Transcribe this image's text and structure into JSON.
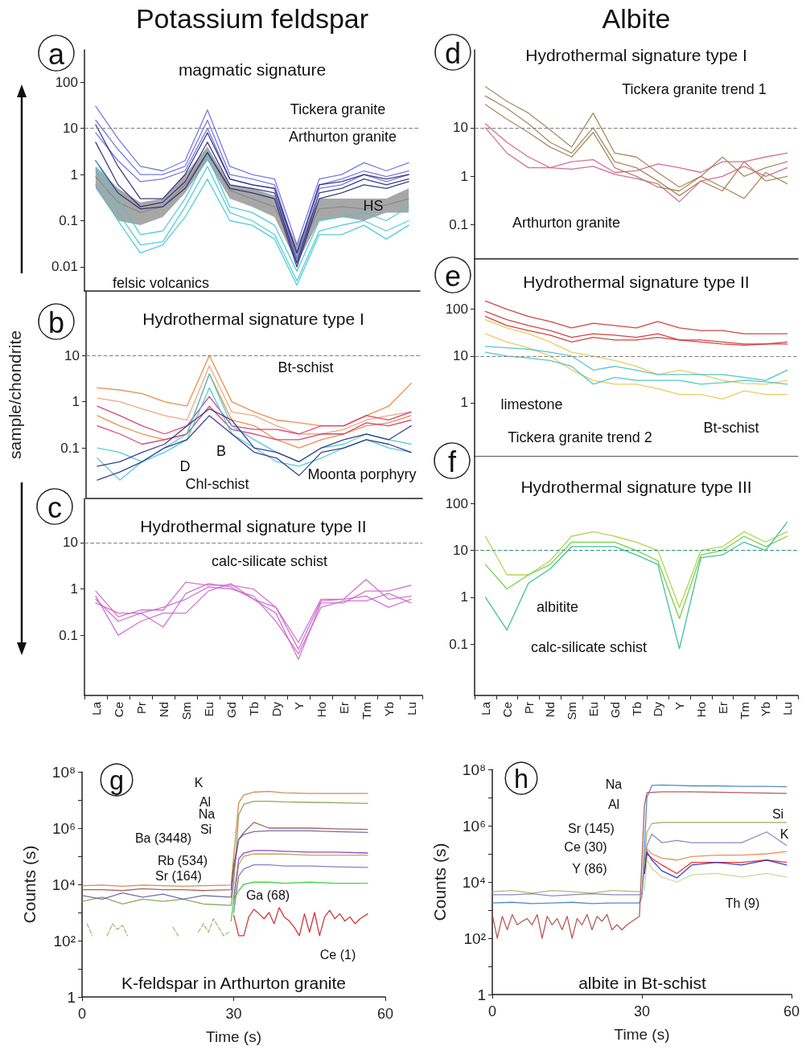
{
  "chart_data": [
    {
      "type": "line",
      "title": "Potassium feldspar",
      "subtitle": "magmatic signature",
      "categories": [
        null,
        null,
        null,
        null,
        null,
        null,
        null,
        null,
        null,
        null,
        null,
        null,
        null,
        null,
        null
      ],
      "log": true,
      "ylim": [
        0.003,
        500
      ],
      "yticks": [
        0.01,
        0.1,
        1,
        10,
        100
      ],
      "tick_labels": "y",
      "series": [
        {
          "color": "#8a8a8a",
          "values": [
            0.9,
            0.25,
            0.15,
            0.2,
            0.6,
            3,
            0.45,
            0.3,
            0.2,
            0.02,
            0.18,
            0.2,
            0.18,
            0.22,
            0.3
          ],
          "lower": [
            0.5,
            0.1,
            0.08,
            0.12,
            0.4,
            2,
            0.3,
            0.2,
            0.12,
            0.012,
            0.1,
            0.12,
            0.1,
            0.15,
            0.15
          ],
          "upper": [
            1.5,
            0.5,
            0.25,
            0.3,
            1,
            4,
            0.6,
            0.5,
            0.35,
            0.03,
            0.3,
            0.3,
            0.3,
            0.3,
            0.5
          ]
        },
        {
          "color": "#6a6ae0",
          "values": [
            30,
            6,
            1.5,
            1.2,
            2,
            25,
            1.5,
            1,
            0.8,
            0.03,
            0.8,
            1,
            1.8,
            1.2,
            1.8
          ]
        },
        {
          "color": "#6a6ae0",
          "values": [
            15,
            3.5,
            1,
            1,
            1.5,
            15,
            1,
            0.8,
            0.6,
            0.02,
            0.6,
            0.8,
            1.2,
            0.9,
            1.2
          ]
        },
        {
          "color": "#6a6ae0",
          "values": [
            8,
            2,
            0.7,
            0.8,
            1.2,
            10,
            0.8,
            0.6,
            0.5,
            0.015,
            0.5,
            0.6,
            1,
            0.7,
            1
          ]
        },
        {
          "color": "#2a2a78",
          "values": [
            12,
            1.5,
            0.3,
            0.3,
            1,
            8,
            0.8,
            0.6,
            0.5,
            0.02,
            0.6,
            0.7,
            1,
            0.8,
            1
          ]
        },
        {
          "color": "#2a2a78",
          "values": [
            5,
            0.6,
            0.2,
            0.25,
            0.7,
            5,
            0.6,
            0.5,
            0.4,
            0.012,
            0.4,
            0.5,
            0.8,
            0.6,
            0.8
          ]
        },
        {
          "color": "#2a2a78",
          "values": [
            2,
            0.4,
            0.18,
            0.2,
            0.5,
            3,
            0.5,
            0.4,
            0.3,
            0.01,
            0.3,
            0.4,
            0.6,
            0.5,
            0.7
          ]
        },
        {
          "color": "#40c8d8",
          "values": [
            2,
            0.3,
            0.05,
            0.06,
            0.3,
            2.5,
            0.2,
            0.15,
            0.08,
            0.008,
            0.1,
            0.12,
            0.15,
            0.1,
            0.2
          ]
        },
        {
          "color": "#40c8d8",
          "values": [
            1.3,
            0.15,
            0.03,
            0.035,
            0.2,
            1.5,
            0.15,
            0.1,
            0.05,
            0.005,
            0.06,
            0.08,
            0.1,
            0.06,
            0.1
          ]
        },
        {
          "color": "#40c8d8",
          "values": [
            0.6,
            0.1,
            0.02,
            0.03,
            0.12,
            0.8,
            0.1,
            0.08,
            0.04,
            0.004,
            0.05,
            0.05,
            0.08,
            0.04,
            0.08
          ]
        }
      ],
      "ref_lines": [
        {
          "axis": "y",
          "value": 10,
          "line_style": "dashed",
          "color": "#808080"
        }
      ],
      "annotations": [
        "a",
        "Tickera granite",
        "Arthurton granite",
        "felsic volcanics",
        "HS"
      ]
    },
    {
      "type": "line",
      "title": "Hydrothermal signature type I",
      "ylabel": "sample/chondrite",
      "categories": [
        null,
        null,
        null,
        null,
        null,
        null,
        null,
        null,
        null,
        null,
        null,
        null,
        null,
        null,
        null
      ],
      "log": true,
      "ylim": [
        0.008,
        250
      ],
      "yticks": [
        0.1,
        1,
        10
      ],
      "tick_labels": "y",
      "series": [
        {
          "color": "#e8843a",
          "values": [
            2,
            1.8,
            1.5,
            1,
            0.8,
            10,
            1,
            0.6,
            0.4,
            0.35,
            0.3,
            0.3,
            0.5,
            0.8,
            2.5
          ]
        },
        {
          "color": "#eca070",
          "values": [
            1.2,
            1,
            0.7,
            0.5,
            0.4,
            6,
            0.6,
            0.5,
            0.3,
            0.2,
            0.2,
            0.25,
            0.4,
            0.5,
            0.6
          ]
        },
        {
          "color": "#e8843a",
          "values": [
            0.5,
            0.3,
            0.2,
            0.15,
            0.2,
            4,
            0.4,
            0.3,
            0.15,
            0.1,
            0.15,
            0.2,
            0.3,
            0.35,
            0.5
          ]
        },
        {
          "color": "#d8306a",
          "values": [
            0.8,
            0.5,
            0.3,
            0.2,
            0.3,
            1.3,
            0.3,
            0.25,
            0.25,
            0.2,
            0.3,
            0.3,
            0.5,
            0.4,
            0.6
          ]
        },
        {
          "color": "#d8306a",
          "values": [
            0.3,
            0.2,
            0.12,
            0.15,
            0.2,
            0.8,
            0.25,
            0.2,
            0.15,
            0.15,
            0.2,
            0.2,
            0.35,
            0.3,
            0.4
          ]
        },
        {
          "color": "#40c8d8",
          "values": [
            0.1,
            0.08,
            0.05,
            0.1,
            0.2,
            4,
            0.3,
            0.15,
            0.08,
            0.05,
            0.1,
            0.12,
            0.2,
            0.15,
            0.12
          ]
        },
        {
          "color": "#40c8d8",
          "values": [
            0.06,
            0.02,
            0.05,
            0.08,
            0.15,
            2,
            0.2,
            0.1,
            0.05,
            0.04,
            0.06,
            0.1,
            0.15,
            0.1,
            0.08
          ]
        },
        {
          "color": "#2a2a80",
          "values": [
            0.04,
            0.05,
            0.08,
            0.12,
            0.3,
            0.7,
            0.4,
            0.1,
            0.08,
            0.05,
            0.1,
            0.15,
            0.2,
            0.15,
            0.3
          ]
        },
        {
          "color": "#2a2a80",
          "values": [
            0.02,
            0.03,
            0.05,
            0.1,
            0.15,
            0.5,
            0.2,
            0.08,
            0.06,
            0.025,
            0.08,
            0.1,
            0.15,
            0.12,
            0.08
          ]
        }
      ],
      "ref_lines": [
        {
          "axis": "y",
          "value": 10,
          "line_style": "dashed",
          "color": "#808080"
        }
      ],
      "annotations": [
        "b",
        "Bt-schist",
        "Chl-schist",
        "D",
        "B",
        "Moonta porphyry"
      ]
    },
    {
      "type": "line",
      "title": "Hydrothermal signature type II",
      "categories": [
        "La",
        "Ce",
        "Pr",
        "Nd",
        "Sm",
        "Eu",
        "Gd",
        "Tb",
        "Dy",
        "Y",
        "Ho",
        "Er",
        "Tm",
        "Yb",
        "Lu"
      ],
      "log": true,
      "ylim": [
        0.005,
        90
      ],
      "yticks": [
        0.1,
        1,
        10
      ],
      "series": [
        {
          "color": "#cc66cc",
          "values": [
            0.9,
            0.25,
            0.35,
            0.35,
            1.4,
            1.2,
            1.2,
            1,
            0.4,
            0.07,
            0.6,
            0.6,
            1.6,
            0.6,
            0.7
          ]
        },
        {
          "color": "#cc66cc",
          "values": [
            0.6,
            0.2,
            0.3,
            0.15,
            0.8,
            1.3,
            1.1,
            0.6,
            0.3,
            0.03,
            0.5,
            0.5,
            0.9,
            0.9,
            1.2
          ]
        },
        {
          "color": "#cc66cc",
          "values": [
            0.7,
            0.1,
            0.2,
            0.3,
            0.3,
            0.9,
            1.3,
            0.6,
            0.4,
            0.05,
            0.55,
            0.6,
            0.7,
            0.4,
            0.6
          ]
        },
        {
          "color": "#cc66cc",
          "values": [
            0.5,
            0.3,
            0.3,
            0.4,
            0.6,
            1.1,
            1,
            0.7,
            0.2,
            0.04,
            0.4,
            0.55,
            0.55,
            0.8,
            0.5
          ]
        }
      ],
      "ref_lines": [
        {
          "axis": "y",
          "value": 10,
          "line_style": "dashed",
          "color": "#808080"
        }
      ],
      "annotations": [
        "c",
        "calc-silicate schist"
      ]
    },
    {
      "type": "line",
      "title": "Albite",
      "subtitle": "Hydrothermal signature type I",
      "categories": [
        null,
        null,
        null,
        null,
        null,
        null,
        null,
        null,
        null,
        null,
        null,
        null,
        null,
        null,
        null
      ],
      "log": true,
      "ylim": [
        0.02,
        400
      ],
      "yticks": [
        0.1,
        1,
        10
      ],
      "tick_labels": "y",
      "series": [
        {
          "color": "#a08050",
          "values": [
            70,
            35,
            20,
            9,
            4,
            20,
            3,
            2.5,
            1.2,
            0.6,
            1,
            2.5,
            1,
            1.5,
            2
          ]
        },
        {
          "color": "#a08050",
          "values": [
            45,
            25,
            12,
            5,
            3,
            10,
            2,
            1.5,
            0.8,
            0.4,
            0.8,
            0.5,
            2,
            0.8,
            1
          ]
        },
        {
          "color": "#a08050",
          "values": [
            30,
            15,
            8,
            4,
            2.5,
            8,
            1.5,
            1,
            0.6,
            0.5,
            1,
            0.6,
            0.35,
            1.2,
            0.7
          ]
        },
        {
          "color": "#d0608a",
          "values": [
            12,
            5,
            2.5,
            1.5,
            2,
            2.2,
            1.2,
            1.3,
            1.8,
            1.5,
            1.2,
            2,
            2,
            2.5,
            3
          ]
        },
        {
          "color": "#d0608a",
          "values": [
            10,
            3,
            1.5,
            1.5,
            1.4,
            1.6,
            1.1,
            0.9,
            0.7,
            0.3,
            0.8,
            1,
            1.6,
            1,
            1.5
          ]
        }
      ],
      "ref_lines": [
        {
          "axis": "y",
          "value": 10,
          "line_style": "dashed",
          "color": "#808080"
        }
      ],
      "annotations": [
        "d",
        "Tickera granite trend 1",
        "Arthurton granite"
      ]
    },
    {
      "type": "line",
      "title": "Hydrothermal signature type II",
      "categories": [
        null,
        null,
        null,
        null,
        null,
        null,
        null,
        null,
        null,
        null,
        null,
        null,
        null,
        null,
        null
      ],
      "log": true,
      "ylim": [
        0.07,
        1200
      ],
      "yticks": [
        1,
        10,
        100
      ],
      "tick_labels": "y",
      "series": [
        {
          "color": "#d03030",
          "values": [
            150,
            100,
            70,
            55,
            40,
            50,
            45,
            40,
            55,
            40,
            35,
            35,
            30,
            30,
            30
          ]
        },
        {
          "color": "#d03030",
          "values": [
            90,
            60,
            45,
            35,
            25,
            30,
            28,
            25,
            30,
            22,
            22,
            20,
            18,
            18,
            18
          ]
        },
        {
          "color": "#d03030",
          "values": [
            70,
            45,
            35,
            28,
            20,
            25,
            22,
            22,
            25,
            22,
            20,
            18,
            17,
            18,
            20
          ]
        },
        {
          "color": "#e8c850",
          "values": [
            60,
            40,
            30,
            20,
            12,
            10,
            8,
            6,
            4,
            5,
            4,
            3,
            2.6,
            2.5,
            3
          ]
        },
        {
          "color": "#e8c850",
          "values": [
            30,
            20,
            15,
            10,
            5,
            3,
            2.5,
            2.5,
            2,
            1.5,
            1.5,
            1.2,
            1.8,
            1.5,
            1.5
          ]
        },
        {
          "color": "#40c0c8",
          "values": [
            16,
            15,
            14,
            12,
            10,
            5,
            6,
            5,
            4,
            4,
            4,
            4,
            3.5,
            3,
            5
          ]
        },
        {
          "color": "#40c0c8",
          "values": [
            12,
            10,
            9,
            8,
            6,
            2.5,
            3.5,
            3,
            3,
            3,
            2.5,
            2.7,
            3,
            2.8,
            2.5
          ]
        }
      ],
      "ref_lines": [
        {
          "axis": "y",
          "value": 10,
          "line_style": "dashed",
          "color": "#808080"
        }
      ],
      "annotations": [
        "e",
        "limestone",
        "Tickera granite trend 2",
        "Bt-schist"
      ]
    },
    {
      "type": "line",
      "title": "Hydrothermal signature type III",
      "categories": [
        "La",
        "Ce",
        "Pr",
        "Nd",
        "Sm",
        "Eu",
        "Gd",
        "Tb",
        "Dy",
        "Y",
        "Ho",
        "Er",
        "Tm",
        "Yb",
        "Lu"
      ],
      "log": true,
      "ylim": [
        0.008,
        1000
      ],
      "yticks": [
        0.1,
        1,
        10,
        100
      ],
      "series": [
        {
          "color": "#a8d040",
          "values": [
            20,
            3,
            3,
            6,
            20,
            25,
            20,
            15,
            10,
            0.6,
            10,
            12,
            25,
            15,
            25
          ]
        },
        {
          "color": "#66cc33",
          "values": [
            5,
            1.5,
            3,
            5,
            15,
            15,
            15,
            10,
            6,
            0.35,
            8,
            10,
            20,
            12,
            20
          ]
        },
        {
          "color": "#30b890",
          "values": [
            1,
            0.2,
            2,
            4,
            12,
            12,
            12,
            8,
            5,
            0.08,
            7,
            8,
            15,
            10,
            40
          ]
        }
      ],
      "ref_lines": [
        {
          "axis": "y",
          "value": 10,
          "line_style": "dashed",
          "color": "#309070"
        }
      ],
      "annotations": [
        "f",
        "albitite",
        "calc-silicate schist"
      ]
    },
    {
      "type": "line",
      "title": "K-feldspar in Arthurton granite",
      "xlabel": "Time (s)",
      "ylabel": "Counts (s)",
      "log": true,
      "xlim": [
        0,
        60
      ],
      "xticks": [
        0,
        30,
        60
      ],
      "ylim": [
        1,
        100000000
      ],
      "yticks": [
        1,
        {
          "value": 10,
          "label": null
        },
        {
          "value": 100,
          "label": "10²"
        },
        {
          "value": 1000,
          "label": null
        },
        {
          "value": 10000,
          "label": "10⁴"
        },
        {
          "value": 100000,
          "label": null
        },
        {
          "value": 1000000,
          "label": "10⁶"
        },
        {
          "value": 10000000,
          "label": null
        },
        {
          "value": 100000000,
          "label": "10⁸"
        }
      ],
      "series": [
        {
          "color": "#d08040",
          "x": [
            0,
            4,
            8,
            12,
            16,
            20,
            24,
            29.5,
            30,
            31,
            32,
            34,
            37,
            40,
            45,
            50,
            56.5
          ],
          "values": [
            9000,
            9500,
            8500,
            9500,
            9000,
            8500,
            9000,
            9500,
            100000,
            8000000,
            15000000,
            19000000,
            20000000,
            18000000,
            17000000,
            17000000,
            17000000
          ]
        },
        {
          "color": "#80a050",
          "x": [
            0,
            4,
            8,
            12,
            16,
            20,
            24,
            29.5,
            30,
            31,
            32,
            34,
            37,
            40,
            45,
            50,
            56.5
          ],
          "values": [
            2500,
            3500,
            2000,
            3000,
            2500,
            3000,
            2000,
            1800,
            10000,
            3000000,
            7000000,
            9000000,
            9000000,
            8500000,
            8200000,
            8000000,
            7500000
          ]
        },
        {
          "color": "#a05050",
          "x": [
            0,
            4,
            8,
            12,
            16,
            20,
            24,
            29.5,
            30,
            31,
            32,
            34,
            37,
            40,
            45,
            50,
            56.5
          ],
          "values": [
            6500,
            6500,
            6000,
            7000,
            6500,
            6500,
            6000,
            6500,
            50000,
            400000,
            700000,
            1600000,
            1000000,
            1000000,
            1000000,
            950000,
            900000
          ]
        },
        {
          "color": "#6060a0",
          "x": [
            0,
            4,
            8,
            12,
            16,
            20,
            24,
            29.5,
            30,
            31,
            32,
            34,
            37,
            40,
            45,
            50,
            56.5
          ],
          "values": [
            4000,
            3000,
            5000,
            3500,
            4500,
            3000,
            4000,
            3500,
            30000,
            400000,
            600000,
            750000,
            800000,
            800000,
            800000,
            750000,
            700000
          ]
        },
        {
          "color": "#9030c0",
          "x": [
            30,
            31,
            32,
            34,
            37,
            40,
            45,
            50,
            56.5
          ],
          "values": [
            3000,
            80000,
            130000,
            160000,
            160000,
            150000,
            140000,
            140000,
            130000
          ]
        },
        {
          "color": "#b0a050",
          "x": [
            30,
            31,
            32,
            34,
            37,
            40,
            45,
            50,
            56.5
          ],
          "values": [
            2000,
            50000,
            100000,
            120000,
            120000,
            120000,
            110000,
            110000,
            110000
          ]
        },
        {
          "color": "#8070c0",
          "x": [
            30,
            31,
            32,
            34,
            37,
            40,
            45,
            50,
            56.5
          ],
          "values": [
            1000,
            20000,
            35000,
            50000,
            50000,
            45000,
            45000,
            42000,
            40000
          ]
        },
        {
          "color": "#30d030",
          "x": [
            29.5,
            30,
            31,
            32,
            34,
            37,
            40,
            45,
            50,
            56.5
          ],
          "values": [
            500,
            3000,
            6000,
            10000,
            12000,
            12000,
            11000,
            12000,
            11000,
            11000
          ]
        },
        {
          "color": "#d02020",
          "x": [
            30,
            31,
            32,
            33,
            34,
            35,
            36,
            37,
            38,
            39,
            40,
            41,
            42,
            43,
            44,
            45,
            46,
            47,
            48,
            49,
            50,
            51,
            52,
            53,
            54,
            55,
            56.5
          ],
          "values": [
            800,
            150,
            150,
            700,
            1300,
            900,
            600,
            1000,
            400,
            1500,
            700,
            500,
            300,
            150,
            900,
            200,
            1000,
            150,
            700,
            1200,
            600,
            900,
            500,
            700,
            400,
            600,
            900
          ]
        },
        {
          "color": "#a0b060",
          "line_style": "dashed",
          "x": [
            1,
            2,
            3,
            5,
            6,
            7,
            8,
            9,
            10,
            18,
            19,
            22,
            23,
            24,
            25,
            26,
            28,
            29
          ],
          "values": [
            400,
            150,
            null,
            150,
            400,
            250,
            350,
            150,
            null,
            300,
            150,
            null,
            200,
            400,
            200,
            600,
            150,
            200
          ]
        }
      ],
      "annotations": [
        "g",
        "K",
        "Al",
        "Na",
        "Si",
        "Ba (3448)",
        "Rb (534)",
        "Sr (164)",
        "Ga (68)",
        "Ce (1)"
      ]
    },
    {
      "type": "line",
      "title": "albite in Bt-schist",
      "xlabel": "Time (s)",
      "ylabel": "Counts (s)",
      "log": true,
      "xlim": [
        0,
        60
      ],
      "xticks": [
        0,
        30,
        60
      ],
      "ylim": [
        1,
        100000000
      ],
      "yticks": [
        1,
        {
          "value": 10,
          "label": null
        },
        {
          "value": 100,
          "label": "10²"
        },
        {
          "value": 1000,
          "label": null
        },
        {
          "value": 10000,
          "label": "10⁴"
        },
        {
          "value": 100000,
          "label": null
        },
        {
          "value": 1000000,
          "label": "10⁶"
        },
        {
          "value": 10000000,
          "label": null
        },
        {
          "value": 100000000,
          "label": "10⁸"
        }
      ],
      "series": [
        {
          "color": "#4080c0",
          "x": [
            0,
            4,
            8,
            12,
            16,
            20,
            24,
            29.5,
            30,
            31,
            32,
            34,
            37,
            40,
            45,
            50,
            55,
            59
          ],
          "values": [
            1800,
            1900,
            1700,
            1800,
            1900,
            1700,
            1800,
            1800,
            3000,
            10000000,
            27000000,
            28000000,
            27000000,
            26000000,
            26000000,
            25000000,
            25000000,
            24000000
          ]
        },
        {
          "color": "#b04848",
          "x": [
            0,
            1,
            2,
            3,
            4,
            5,
            6,
            7,
            8,
            9,
            10,
            11,
            12,
            13,
            14,
            15,
            16,
            17,
            18,
            19,
            20,
            21,
            22,
            23,
            24,
            25,
            26,
            27,
            28,
            29.5,
            30.5,
            31,
            34,
            40,
            50,
            59
          ],
          "values": [
            700,
            100,
            600,
            200,
            700,
            300,
            400,
            500,
            300,
            700,
            100,
            600,
            300,
            500,
            200,
            600,
            100,
            500,
            300,
            700,
            200,
            600,
            400,
            700,
            200,
            300,
            200,
            300,
            400,
            600,
            5000000,
            15000000,
            16000000,
            16000000,
            15000000,
            14000000
          ]
        },
        {
          "color": "#98b868",
          "x": [
            0,
            4,
            8,
            12,
            16,
            20,
            24,
            29.5,
            30,
            31,
            32,
            34,
            37,
            40,
            45,
            50,
            55,
            59
          ],
          "values": [
            4500,
            5000,
            4000,
            5000,
            4500,
            4000,
            5000,
            4500,
            4500,
            600000,
            1200000,
            1300000,
            1300000,
            1300000,
            1300000,
            1300000,
            1300000,
            1300000
          ]
        },
        {
          "color": "#8878b8",
          "x": [
            0,
            4,
            8,
            12,
            16,
            20,
            24,
            29.5,
            30,
            31,
            32,
            34,
            37,
            40,
            45,
            50,
            55,
            59
          ],
          "values": [
            3500,
            3500,
            3800,
            3200,
            3500,
            3800,
            3500,
            3500,
            4000,
            200000,
            500000,
            250000,
            300000,
            250000,
            250000,
            250000,
            600000,
            200000
          ]
        },
        {
          "color": "#e08848",
          "x": [
            30.5,
            31,
            32,
            34,
            37,
            40,
            45,
            50,
            55,
            59
          ],
          "values": [
            20000,
            150000,
            100000,
            70000,
            60000,
            80000,
            90000,
            90000,
            100000,
            120000
          ]
        },
        {
          "color": "#e82020",
          "x": [
            30.5,
            31,
            32,
            34,
            37,
            40,
            45,
            50,
            55,
            59
          ],
          "values": [
            20000,
            100000,
            70000,
            40000,
            20000,
            50000,
            50000,
            50000,
            60000,
            50000
          ]
        },
        {
          "color": "#2030c8",
          "x": [
            30.5,
            31,
            32,
            34,
            37,
            40,
            45,
            50,
            55,
            59
          ],
          "values": [
            20000,
            120000,
            60000,
            25000,
            14000,
            40000,
            50000,
            40000,
            60000,
            40000
          ]
        },
        {
          "color": "#c8d098",
          "x": [
            30.5,
            31,
            32,
            34,
            37,
            40,
            45,
            50,
            55,
            59
          ],
          "values": [
            5000,
            60000,
            30000,
            15000,
            10000,
            18000,
            20000,
            15000,
            20000,
            15000
          ]
        }
      ],
      "annotations": [
        "h",
        "Na",
        "Al",
        "Si",
        "K",
        "Sr (145)",
        "Ce (30)",
        "Y (86)",
        "Th (9)"
      ]
    }
  ]
}
